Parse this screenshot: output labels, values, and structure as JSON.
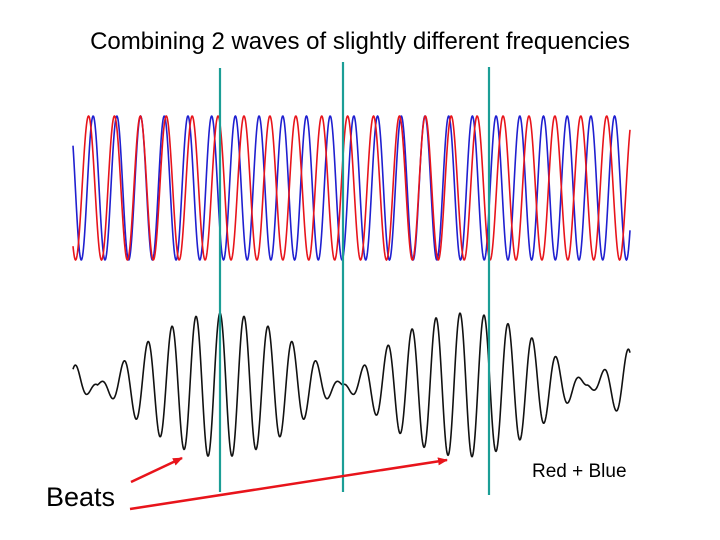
{
  "title": "Combining 2 waves of slightly different frequencies",
  "sum_label": "Red + Blue",
  "beats_label": "Beats",
  "colors": {
    "wave_red": "#e8141b",
    "wave_blue": "#1f1fd0",
    "wave_sum": "#111111",
    "marker": "#1b9e96",
    "arrow": "#e8141b"
  }
}
